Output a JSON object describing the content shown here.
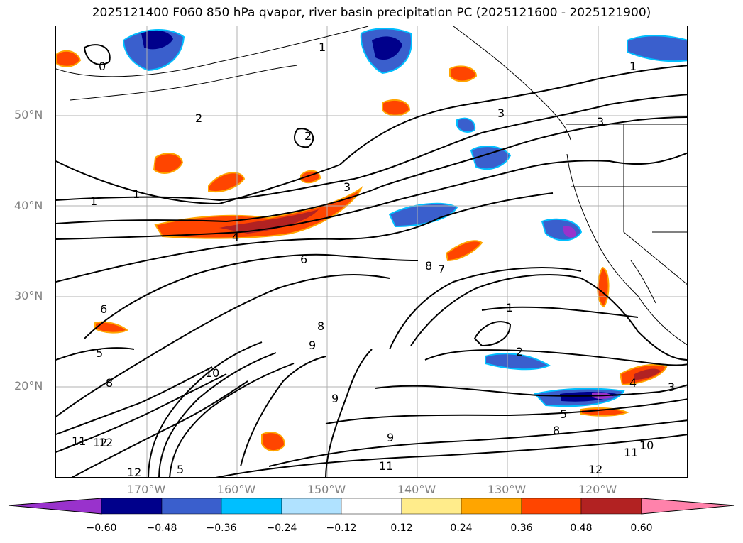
{
  "title": "2025121400 F060 850 hPa qvapor, river basin precipitation PC (2025121600 - 2025121900)",
  "map": {
    "projection": "lat-lon",
    "lat_labels": [
      "50°N",
      "40°N",
      "30°N",
      "20°N"
    ],
    "lon_labels": [
      "170°W",
      "160°W",
      "150°W",
      "140°W",
      "130°W",
      "120°W"
    ],
    "gridlines": true,
    "colors": {
      "gridline": "#b0b0b0",
      "contour": "#000000",
      "coast": "#000000",
      "tick_label": "#808080"
    },
    "contour_labels": [
      {
        "text": "0"
      },
      {
        "text": "1"
      },
      {
        "text": "1"
      },
      {
        "text": "1"
      },
      {
        "text": "2"
      },
      {
        "text": "2"
      },
      {
        "text": "3"
      },
      {
        "text": "3"
      },
      {
        "text": "3"
      },
      {
        "text": "1"
      },
      {
        "text": "4"
      },
      {
        "text": "6"
      },
      {
        "text": "8"
      },
      {
        "text": "7"
      },
      {
        "text": "1"
      },
      {
        "text": "2"
      },
      {
        "text": "9"
      },
      {
        "text": "8"
      },
      {
        "text": "10"
      },
      {
        "text": "9"
      },
      {
        "text": "9"
      },
      {
        "text": "11"
      },
      {
        "text": "12"
      },
      {
        "text": "12"
      },
      {
        "text": "11"
      },
      {
        "text": "12"
      },
      {
        "text": "5"
      },
      {
        "text": "4"
      },
      {
        "text": "3"
      },
      {
        "text": "5"
      },
      {
        "text": "8"
      },
      {
        "text": "10"
      },
      {
        "text": "11"
      },
      {
        "text": "12"
      },
      {
        "text": "6"
      },
      {
        "text": "5"
      },
      {
        "text": "8"
      }
    ]
  },
  "colorbar": {
    "ticks": [
      "−0.60",
      "−0.48",
      "−0.36",
      "−0.24",
      "−0.12",
      "0.12",
      "0.24",
      "0.36",
      "0.48",
      "0.60"
    ],
    "colors": [
      "#9932CC",
      "#00008B",
      "#3A5FCD",
      "#00BFFF",
      "#B0E2FF",
      "#FFFFFF",
      "#FFEC8B",
      "#FFA500",
      "#FF4500",
      "#B22222",
      "#FF82AB"
    ],
    "extend": "both"
  }
}
